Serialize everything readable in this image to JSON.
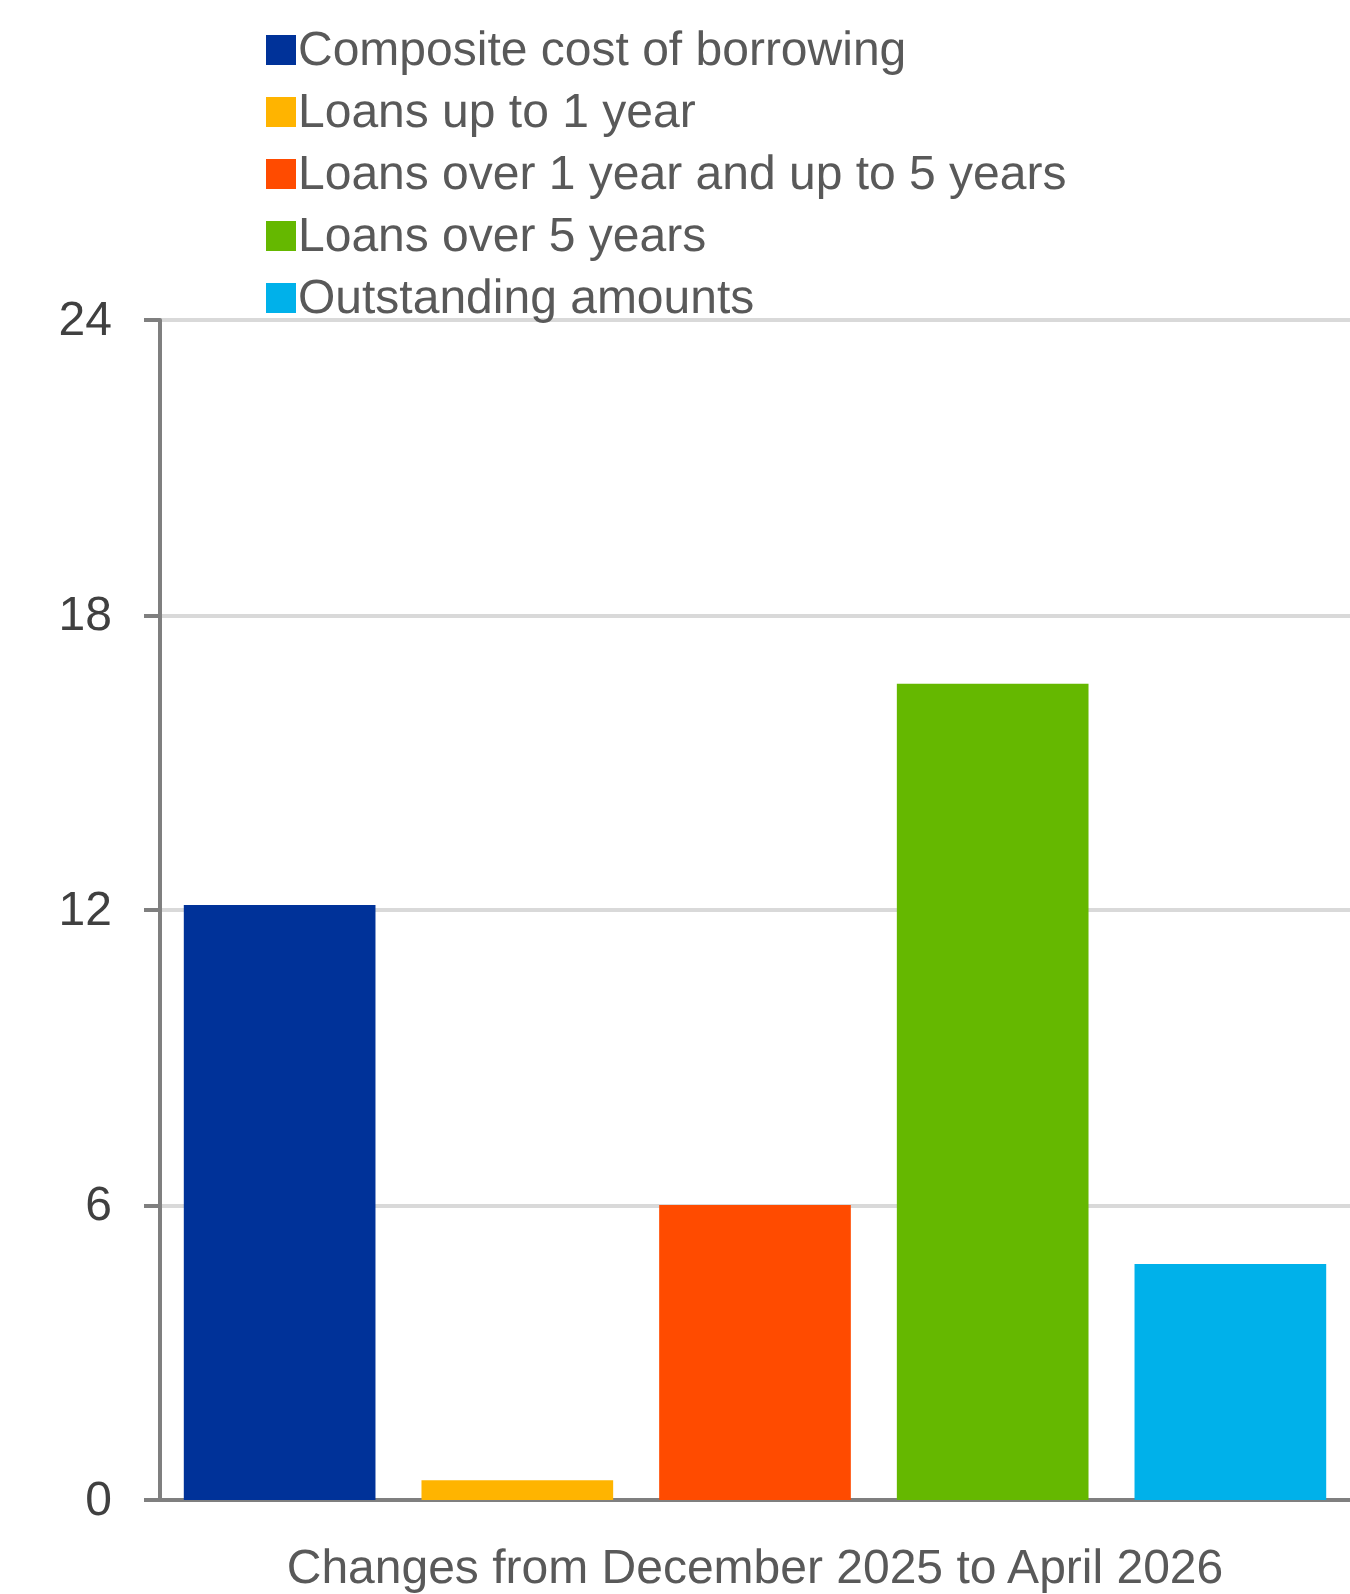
{
  "chart_data": {
    "type": "bar",
    "categories": [
      "Changes from December 2025 to April 2026"
    ],
    "series": [
      {
        "name": "Composite cost of borrowing",
        "color": "#003299",
        "values": [
          12.1
        ]
      },
      {
        "name": "Loans up to 1 year",
        "color": "#ffb400",
        "values": [
          0.4
        ]
      },
      {
        "name": "Loans over 1 year and up to 5 years",
        "color": "#ff4b00",
        "values": [
          6.0
        ]
      },
      {
        "name": "Loans over 5 years",
        "color": "#65b800",
        "values": [
          16.6
        ]
      },
      {
        "name": "Outstanding amounts",
        "color": "#00b1ea",
        "values": [
          4.8
        ]
      }
    ],
    "ylim": [
      0,
      24
    ],
    "yticks": [
      0,
      6,
      12,
      18,
      24
    ],
    "grid": "y",
    "legend": "top"
  }
}
